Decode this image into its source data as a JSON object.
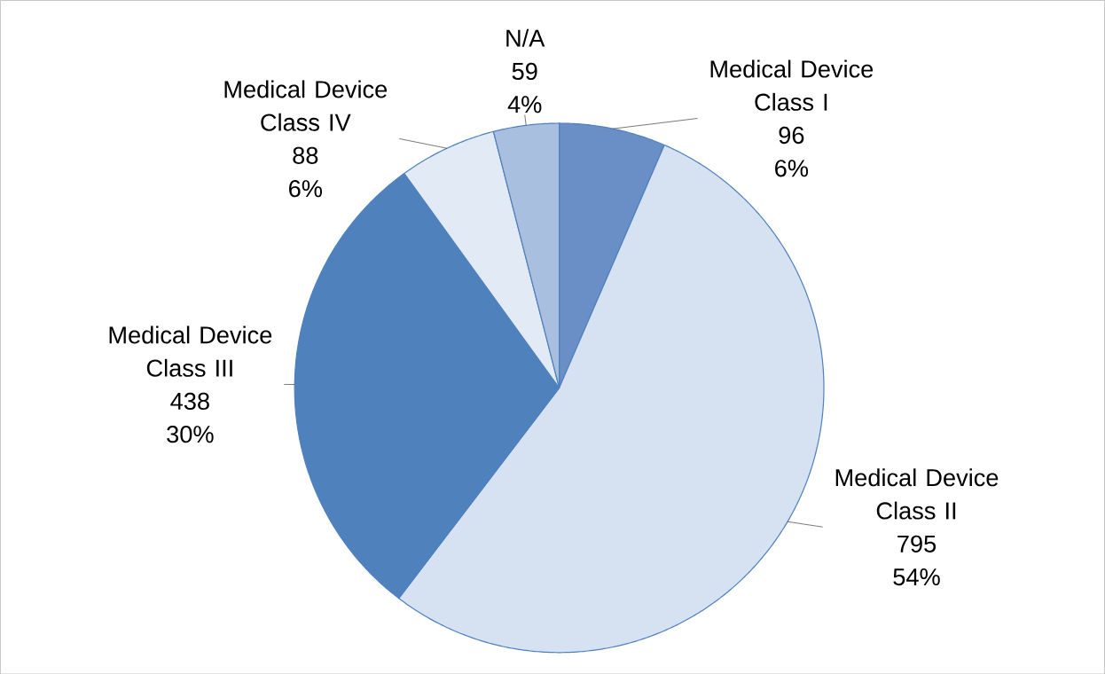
{
  "chart_data": {
    "type": "pie",
    "categories": [
      "Medical Device Class I",
      "Medical Device Class II",
      "Medical Device Class III",
      "Medical Device Class IV",
      "N/A"
    ],
    "values": [
      96,
      795,
      438,
      88,
      59
    ],
    "annotations": [
      {
        "text": "6%",
        "x": "Medical Device Class I"
      },
      {
        "text": "54%",
        "x": "Medical Device Class II"
      },
      {
        "text": "30%",
        "x": "Medical Device Class III"
      },
      {
        "text": "6%",
        "x": "Medical Device Class IV"
      },
      {
        "text": "4%",
        "x": "N/A"
      }
    ],
    "colors": [
      "#6a8fc6",
      "#d6e1f1",
      "#4f81bd",
      "#e2eaf5",
      "#a8bfe0"
    ],
    "data_labels": true
  }
}
